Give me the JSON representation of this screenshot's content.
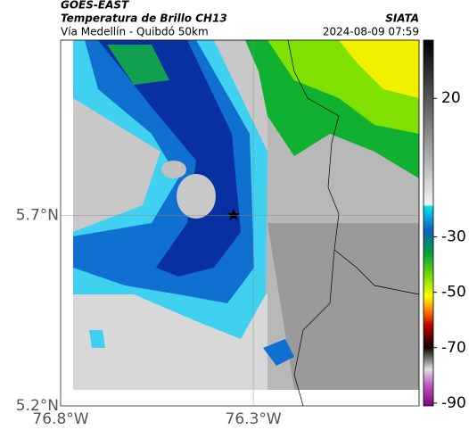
{
  "header": {
    "title": "GOES-EAST",
    "subtitle": "Temperatura de Brillo CH13",
    "source": "SIATA",
    "region": "Vía Medellín - Quibdó 50km",
    "timestamp": "2024-08-09 07:59"
  },
  "map": {
    "xlim": [
      -76.8,
      -75.87
    ],
    "ylim": [
      5.2,
      6.16
    ],
    "xticks": [
      {
        "value": -76.8,
        "label": "76.8°W"
      },
      {
        "value": -76.3,
        "label": "76.3°W"
      }
    ],
    "yticks": [
      {
        "value": 5.7,
        "label": "5.7°N"
      },
      {
        "value": 5.2,
        "label": "5.2°N"
      }
    ]
  },
  "colorbar": {
    "lim": [
      -91,
      41
    ],
    "ticks": [
      20,
      -30,
      -50,
      -70,
      -90
    ]
  }
}
